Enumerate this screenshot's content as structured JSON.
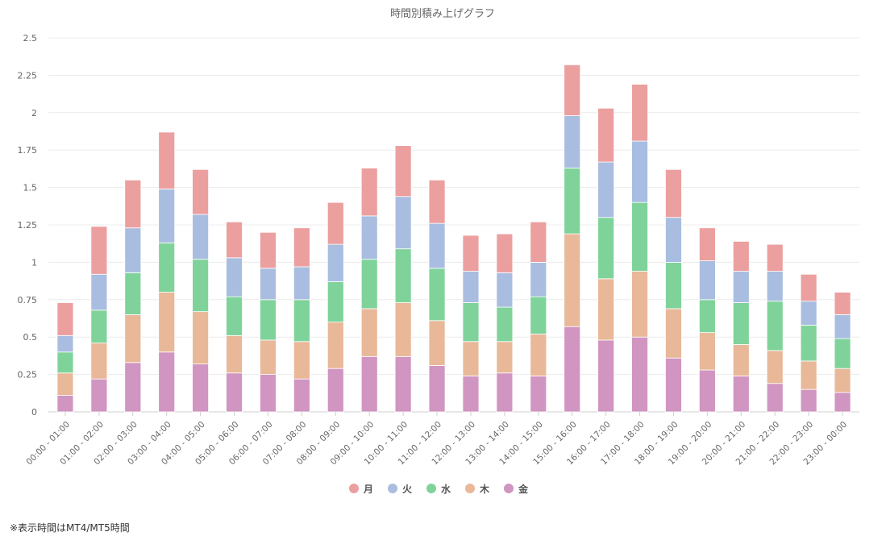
{
  "chart_data": {
    "type": "bar",
    "stacked": true,
    "title": "時間別積み上げグラフ",
    "xlabel": "",
    "ylabel": "",
    "ylim": [
      0,
      2.5
    ],
    "yticks": [
      "0",
      "0.25",
      "0.5",
      "0.75",
      "1",
      "1.25",
      "1.5",
      "1.75",
      "2",
      "2.25",
      "2.5"
    ],
    "ytick_values": [
      0,
      0.25,
      0.5,
      0.75,
      1,
      1.25,
      1.5,
      1.75,
      2,
      2.25,
      2.5
    ],
    "grid": true,
    "legend_position": "bottom-center",
    "categories": [
      "00:00 - 01:00",
      "01:00 - 02:00",
      "02:00 - 03:00",
      "03:00 - 04:00",
      "04:00 - 05:00",
      "05:00 - 06:00",
      "06:00 - 07:00",
      "07:00 - 08:00",
      "08:00 - 09:00",
      "09:00 - 10:00",
      "10:00 - 11:00",
      "11:00 - 12:00",
      "12:00 - 13:00",
      "13:00 - 14:00",
      "14:00 - 15:00",
      "15:00 - 16:00",
      "16:00 - 17:00",
      "17:00 - 18:00",
      "18:00 - 19:00",
      "19:00 - 20:00",
      "20:00 - 21:00",
      "21:00 - 22:00",
      "22:00 - 23:00",
      "23:00 - 00:00"
    ],
    "series": [
      {
        "name": "金",
        "color": "#d095c0",
        "values": [
          0.11,
          0.22,
          0.33,
          0.4,
          0.32,
          0.26,
          0.25,
          0.22,
          0.29,
          0.37,
          0.37,
          0.31,
          0.24,
          0.26,
          0.24,
          0.57,
          0.48,
          0.5,
          0.36,
          0.28,
          0.24,
          0.19,
          0.15,
          0.13
        ]
      },
      {
        "name": "木",
        "color": "#e8b898",
        "values": [
          0.15,
          0.24,
          0.32,
          0.4,
          0.35,
          0.25,
          0.23,
          0.25,
          0.31,
          0.32,
          0.36,
          0.3,
          0.23,
          0.21,
          0.28,
          0.62,
          0.41,
          0.44,
          0.33,
          0.25,
          0.21,
          0.22,
          0.19,
          0.16
        ]
      },
      {
        "name": "水",
        "color": "#7fd39a",
        "values": [
          0.14,
          0.22,
          0.28,
          0.33,
          0.35,
          0.26,
          0.27,
          0.28,
          0.27,
          0.33,
          0.36,
          0.35,
          0.26,
          0.23,
          0.25,
          0.44,
          0.41,
          0.46,
          0.31,
          0.22,
          0.28,
          0.33,
          0.24,
          0.2
        ]
      },
      {
        "name": "火",
        "color": "#a9bde0",
        "values": [
          0.11,
          0.24,
          0.3,
          0.36,
          0.3,
          0.26,
          0.21,
          0.22,
          0.25,
          0.29,
          0.35,
          0.3,
          0.21,
          0.23,
          0.23,
          0.35,
          0.37,
          0.41,
          0.3,
          0.26,
          0.21,
          0.2,
          0.16,
          0.16
        ]
      },
      {
        "name": "月",
        "color": "#ec9f9f",
        "values": [
          0.22,
          0.32,
          0.32,
          0.38,
          0.3,
          0.24,
          0.24,
          0.26,
          0.28,
          0.32,
          0.34,
          0.29,
          0.24,
          0.26,
          0.27,
          0.34,
          0.36,
          0.38,
          0.32,
          0.22,
          0.2,
          0.18,
          0.18,
          0.15
        ]
      }
    ],
    "legend_order": [
      "月",
      "火",
      "水",
      "木",
      "金"
    ]
  },
  "note": "※表示時間はMT4/MT5時間"
}
